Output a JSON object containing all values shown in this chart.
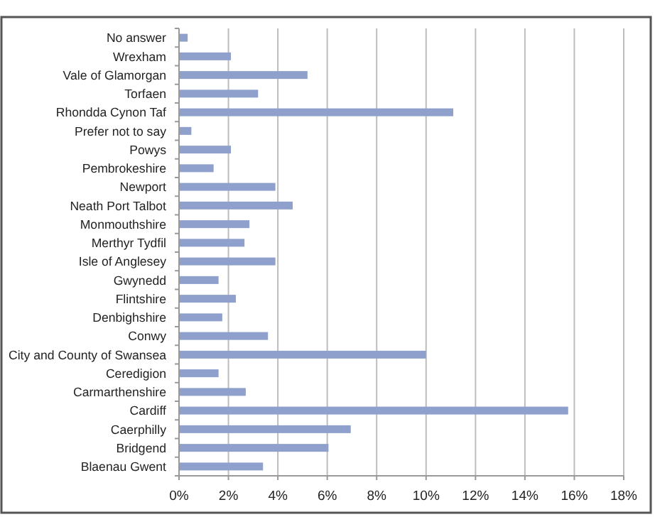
{
  "chart_data": {
    "type": "bar",
    "orientation": "horizontal",
    "categories": [
      "No answer",
      "Wrexham",
      "Vale of Glamorgan",
      "Torfaen",
      "Rhondda Cynon Taf",
      "Prefer not to say",
      "Powys",
      "Pembrokeshire",
      "Newport",
      "Neath Port Talbot",
      "Monmouthshire",
      "Merthyr Tydfil",
      "Isle of Anglesey",
      "Gwynedd",
      "Flintshire",
      "Denbighshire",
      "Conwy",
      "City and County of Swansea",
      "Ceredigion",
      "Carmarthenshire",
      "Cardiff",
      "Caerphilly",
      "Bridgend",
      "Blaenau Gwent"
    ],
    "values": [
      0.35,
      2.1,
      5.2,
      3.2,
      11.1,
      0.5,
      2.1,
      1.4,
      3.9,
      4.6,
      2.85,
      2.65,
      3.9,
      1.6,
      2.3,
      1.75,
      3.6,
      10.0,
      1.6,
      2.7,
      15.75,
      6.95,
      6.05,
      3.4
    ],
    "color": "#8ea0cb",
    "xlim": [
      0,
      18
    ],
    "xticks": [
      {
        "value": 0,
        "label": "0%"
      },
      {
        "value": 2,
        "label": "2%"
      },
      {
        "value": 4,
        "label": "4%"
      },
      {
        "value": 6,
        "label": "6%"
      },
      {
        "value": 8,
        "label": "8%"
      },
      {
        "value": 10,
        "label": "10%"
      },
      {
        "value": 12,
        "label": "12%"
      },
      {
        "value": 14,
        "label": "14%"
      },
      {
        "value": 16,
        "label": "16%"
      },
      {
        "value": 18,
        "label": "18%"
      }
    ],
    "grid": "x"
  }
}
